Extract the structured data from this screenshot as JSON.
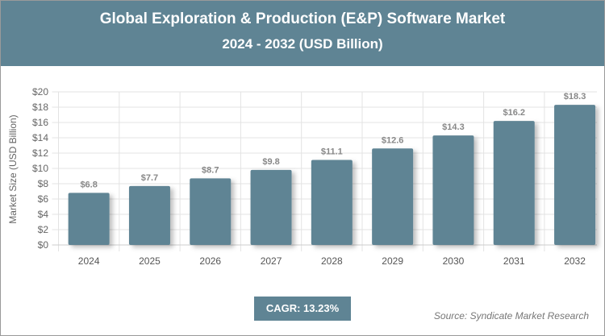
{
  "chart_data": {
    "type": "bar",
    "title": "Global Exploration & Production (E&P) Software Market",
    "subtitle": "2024 - 2032 (USD Billion)",
    "ylabel": "Market Size (USD Billion)",
    "xlabel": "",
    "categories": [
      "2024",
      "2025",
      "2026",
      "2027",
      "2028",
      "2029",
      "2030",
      "2031",
      "2032"
    ],
    "values": [
      6.8,
      7.7,
      8.7,
      9.8,
      11.1,
      12.6,
      14.3,
      16.2,
      18.3
    ],
    "data_labels": [
      "$6.8",
      "$7.7",
      "$8.7",
      "$9.8",
      "$11.1",
      "$12.6",
      "$14.3",
      "$16.2",
      "$18.3"
    ],
    "ylim": [
      0,
      20
    ],
    "yticks": [
      "$0",
      "$2",
      "$4",
      "$6",
      "$8",
      "$10",
      "$12",
      "$14",
      "$16",
      "$18",
      "$20"
    ],
    "grid": true,
    "bar_color": "#5f8494",
    "header_color": "#5f8494"
  },
  "cagr": "CAGR: 13.23%",
  "source": "Source: Syndicate Market Research"
}
